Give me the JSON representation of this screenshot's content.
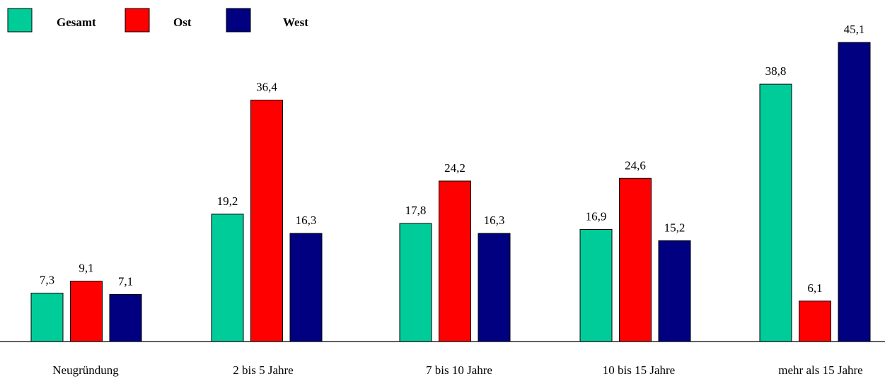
{
  "chart_data": {
    "type": "bar",
    "categories": [
      "Neugründung",
      "2 bis 5 Jahre",
      "7 bis 10 Jahre",
      "10 bis 15 Jahre",
      "mehr als 15 Jahre"
    ],
    "series": [
      {
        "name": "Gesamt",
        "color": "#00cc99",
        "values": [
          7.3,
          19.2,
          17.8,
          16.9,
          38.8
        ],
        "labels": [
          "7,3",
          "19,2",
          "17,8",
          "16,9",
          "38,8"
        ]
      },
      {
        "name": "Ost",
        "color": "#ff0000",
        "values": [
          9.1,
          36.4,
          24.2,
          24.6,
          6.1
        ],
        "labels": [
          "9,1",
          "36,4",
          "24,2",
          "24,6",
          "6,1"
        ]
      },
      {
        "name": "West",
        "color": "#000080",
        "values": [
          7.1,
          16.3,
          16.3,
          15.2,
          45.1
        ],
        "labels": [
          "7,1",
          "16,3",
          "16,3",
          "15,2",
          "45,1"
        ]
      }
    ],
    "ylim": [
      0,
      45.1
    ],
    "legend_position": "top-left",
    "grid": false,
    "title": "",
    "xlabel": "",
    "ylabel": ""
  }
}
